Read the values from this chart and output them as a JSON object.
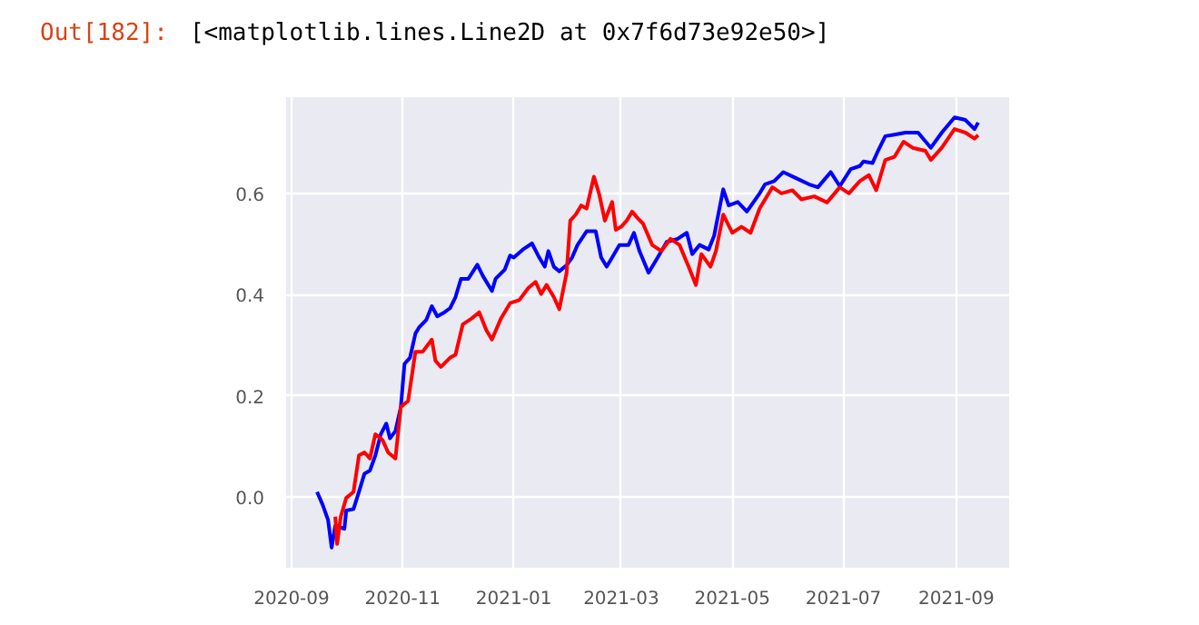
{
  "chart_data": {
    "type": "line",
    "annotations": [
      "Out[182]:",
      "[<matplotlib.lines.Line2D at 0x7f6d73e92e50>]"
    ],
    "xlim": [
      "2020-08-29",
      "2021-09-30"
    ],
    "ylim": [
      -0.14,
      0.79
    ],
    "xticks": [
      "2020-09",
      "2020-11",
      "2021-01",
      "2021-03",
      "2021-05",
      "2021-07",
      "2021-09"
    ],
    "yticks": [
      {
        "value": 0,
        "label": "0.0"
      },
      {
        "value": 0.2,
        "label": "0.2"
      },
      {
        "value": 0.4,
        "label": "0.4"
      },
      {
        "value": 0.6,
        "label": "0.6"
      }
    ],
    "grid": true,
    "line_style": "solid",
    "series": [
      {
        "color": "#0000ff",
        "x": [
          "2020-09-15",
          "2020-09-18",
          "2020-09-21",
          "2020-09-23",
          "2020-09-25",
          "2020-09-30",
          "2020-10-01",
          "2020-10-05",
          "2020-10-08",
          "2020-10-11",
          "2020-10-14",
          "2020-10-17",
          "2020-10-20",
          "2020-10-23",
          "2020-10-25",
          "2020-10-28",
          "2020-10-31",
          "2020-11-02",
          "2020-11-05",
          "2020-11-08",
          "2020-11-10",
          "2020-11-14",
          "2020-11-17",
          "2020-11-20",
          "2020-11-24",
          "2020-11-27",
          "2020-11-30",
          "2020-12-03",
          "2020-12-07",
          "2020-12-12",
          "2020-12-15",
          "2020-12-20",
          "2020-12-22",
          "2020-12-27",
          "2020-12-30",
          "2021-01-01",
          "2021-01-06",
          "2021-01-11",
          "2021-01-15",
          "2021-01-18",
          "2021-01-20",
          "2021-01-23",
          "2021-01-26",
          "2021-01-30",
          "2021-02-02",
          "2021-02-05",
          "2021-02-10",
          "2021-02-15",
          "2021-02-18",
          "2021-02-21",
          "2021-02-24",
          "2021-02-28",
          "2021-03-05",
          "2021-03-08",
          "2021-03-11",
          "2021-03-16",
          "2021-03-21",
          "2021-03-26",
          "2021-04-01",
          "2021-04-06",
          "2021-04-09",
          "2021-04-13",
          "2021-04-18",
          "2021-04-21",
          "2021-04-26",
          "2021-04-29",
          "2021-05-04",
          "2021-05-09",
          "2021-05-16",
          "2021-05-19",
          "2021-05-24",
          "2021-05-29",
          "2021-06-05",
          "2021-06-12",
          "2021-06-17",
          "2021-06-24",
          "2021-06-29",
          "2021-07-05",
          "2021-07-10",
          "2021-07-12",
          "2021-07-17",
          "2021-07-20",
          "2021-07-24",
          "2021-07-29",
          "2021-08-04",
          "2021-08-11",
          "2021-08-18",
          "2021-08-24",
          "2021-08-31",
          "2021-09-06",
          "2021-09-11",
          "2021-09-13"
        ],
        "values": [
          0.01,
          -0.015,
          -0.045,
          -0.1,
          -0.057,
          -0.063,
          -0.027,
          -0.024,
          0.01,
          0.046,
          0.052,
          0.082,
          0.124,
          0.145,
          0.116,
          0.13,
          0.178,
          0.263,
          0.275,
          0.323,
          0.335,
          0.35,
          0.377,
          0.357,
          0.365,
          0.373,
          0.395,
          0.431,
          0.431,
          0.459,
          0.437,
          0.407,
          0.431,
          0.449,
          0.477,
          0.473,
          0.489,
          0.501,
          0.473,
          0.455,
          0.486,
          0.455,
          0.446,
          0.458,
          0.473,
          0.498,
          0.525,
          0.525,
          0.473,
          0.455,
          0.473,
          0.498,
          0.498,
          0.522,
          0.486,
          0.443,
          0.473,
          0.504,
          0.51,
          0.522,
          0.48,
          0.498,
          0.489,
          0.516,
          0.608,
          0.576,
          0.583,
          0.564,
          0.6,
          0.618,
          0.624,
          0.642,
          0.63,
          0.618,
          0.612,
          0.642,
          0.614,
          0.648,
          0.654,
          0.663,
          0.66,
          0.684,
          0.713,
          0.716,
          0.72,
          0.72,
          0.69,
          0.72,
          0.75,
          0.745,
          0.727,
          0.74
        ]
      },
      {
        "color": "#ff0000",
        "x": [
          "2020-09-25",
          "2020-09-26",
          "2020-09-28",
          "2020-10-01",
          "2020-10-05",
          "2020-10-08",
          "2020-10-11",
          "2020-10-14",
          "2020-10-17",
          "2020-10-21",
          "2020-10-24",
          "2020-10-28",
          "2020-10-31",
          "2020-11-04",
          "2020-11-08",
          "2020-11-12",
          "2020-11-17",
          "2020-11-19",
          "2020-11-22",
          "2020-11-27",
          "2020-11-30",
          "2020-12-04",
          "2020-12-09",
          "2020-12-13",
          "2020-12-17",
          "2020-12-20",
          "2020-12-25",
          "2020-12-30",
          "2021-01-04",
          "2021-01-09",
          "2021-01-13",
          "2021-01-16",
          "2021-01-19",
          "2021-01-23",
          "2021-01-26",
          "2021-01-30",
          "2021-02-01",
          "2021-02-04",
          "2021-02-07",
          "2021-02-10",
          "2021-02-14",
          "2021-02-17",
          "2021-02-20",
          "2021-02-24",
          "2021-02-26",
          "2021-03-01",
          "2021-03-04",
          "2021-03-07",
          "2021-03-10",
          "2021-03-13",
          "2021-03-18",
          "2021-03-23",
          "2021-03-28",
          "2021-04-02",
          "2021-04-07",
          "2021-04-11",
          "2021-04-14",
          "2021-04-19",
          "2021-04-22",
          "2021-04-26",
          "2021-05-01",
          "2021-05-06",
          "2021-05-11",
          "2021-05-16",
          "2021-05-23",
          "2021-05-28",
          "2021-06-03",
          "2021-06-08",
          "2021-06-15",
          "2021-06-22",
          "2021-06-29",
          "2021-07-04",
          "2021-07-10",
          "2021-07-15",
          "2021-07-19",
          "2021-07-24",
          "2021-07-29",
          "2021-08-03",
          "2021-08-08",
          "2021-08-15",
          "2021-08-18",
          "2021-08-24",
          "2021-08-31",
          "2021-09-06",
          "2021-09-11",
          "2021-09-13"
        ],
        "values": [
          -0.039,
          -0.093,
          -0.039,
          -0.002,
          0.01,
          0.082,
          0.088,
          0.076,
          0.124,
          0.112,
          0.088,
          0.076,
          0.178,
          0.19,
          0.287,
          0.287,
          0.311,
          0.269,
          0.257,
          0.275,
          0.281,
          0.341,
          0.353,
          0.365,
          0.329,
          0.311,
          0.353,
          0.383,
          0.389,
          0.413,
          0.425,
          0.401,
          0.419,
          0.395,
          0.371,
          0.443,
          0.546,
          0.558,
          0.576,
          0.57,
          0.633,
          0.597,
          0.546,
          0.583,
          0.528,
          0.534,
          0.546,
          0.564,
          0.551,
          0.54,
          0.498,
          0.486,
          0.51,
          0.498,
          0.455,
          0.419,
          0.48,
          0.455,
          0.486,
          0.558,
          0.522,
          0.534,
          0.522,
          0.57,
          0.612,
          0.6,
          0.606,
          0.588,
          0.594,
          0.582,
          0.612,
          0.6,
          0.624,
          0.636,
          0.606,
          0.666,
          0.672,
          0.702,
          0.69,
          0.684,
          0.666,
          0.69,
          0.727,
          0.72,
          0.708,
          0.715
        ]
      }
    ]
  }
}
